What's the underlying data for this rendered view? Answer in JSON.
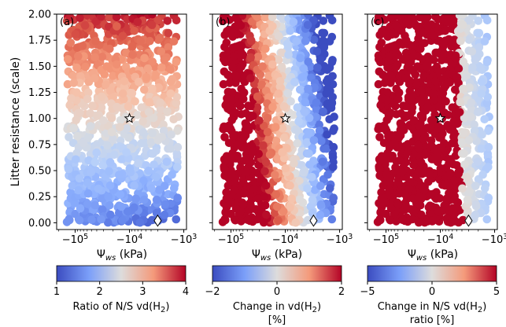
{
  "chart_data": [
    {
      "type": "scatter",
      "panel_label": "(a)",
      "xlabel": "Ψ_ws (kPa)",
      "ylabel": "Litter resistance (scale)",
      "x_scale": "symlog (negative)",
      "x_ticks": [
        "−10^5",
        "−10^4",
        "−10^3"
      ],
      "y_ticks": [
        "0.00",
        "0.25",
        "0.50",
        "0.75",
        "1.00",
        "1.25",
        "1.50",
        "1.75",
        "2.00"
      ],
      "ylim": [
        0,
        2
      ],
      "colorbar": {
        "label": "Ratio of N/S vd(H2)",
        "min": 1,
        "max": 4,
        "ticks": [
          "1",
          "2",
          "3",
          "4"
        ],
        "cmap": "coolwarm"
      },
      "markers": [
        {
          "symbol": "star",
          "x": -10000,
          "y": 1.0
        },
        {
          "symbol": "diamond",
          "x": -3000,
          "y": 0.02
        }
      ]
    },
    {
      "type": "scatter",
      "panel_label": "(b)",
      "xlabel": "Ψ_ws (kPa)",
      "x_scale": "symlog (negative)",
      "x_ticks": [
        "−10^5",
        "−10^4",
        "−10^3"
      ],
      "ylim": [
        0,
        2
      ],
      "colorbar": {
        "label": "Change in vd(H2) [%]",
        "min": -2,
        "max": 2,
        "ticks": [
          "−2",
          "0",
          "2"
        ],
        "cmap": "coolwarm"
      },
      "markers": [
        {
          "symbol": "star",
          "x": -10000,
          "y": 1.0
        },
        {
          "symbol": "diamond",
          "x": -3000,
          "y": 0.02
        }
      ]
    },
    {
      "type": "scatter",
      "panel_label": "(c)",
      "xlabel": "Ψ_ws (kPa)",
      "x_scale": "symlog (negative)",
      "x_ticks": [
        "−10^5",
        "−10^4",
        "−10^3"
      ],
      "ylim": [
        0,
        2
      ],
      "colorbar": {
        "label": "Change in N/S vd(H2) ratio [%]",
        "min": -5,
        "max": 5,
        "ticks": [
          "−5",
          "0",
          "5"
        ],
        "cmap": "coolwarm"
      },
      "markers": [
        {
          "symbol": "star",
          "x": -10000,
          "y": 1.0
        },
        {
          "symbol": "diamond",
          "x": -3000,
          "y": 0.02
        }
      ]
    }
  ],
  "labels": {
    "panel_a": "(a)",
    "panel_b": "(b)",
    "panel_c": "(c)",
    "ylabel": "Litter resistance (scale)",
    "xlabel_main": "Ψ",
    "xlabel_sub": "ws",
    "xlabel_unit": " (kPa)",
    "xtick_base": "−10",
    "xtick_exp_1": "5",
    "xtick_exp_2": "4",
    "xtick_exp_3": "3",
    "ytick_0": "0.00",
    "ytick_1": "0.25",
    "ytick_2": "0.50",
    "ytick_3": "0.75",
    "ytick_4": "1.00",
    "ytick_5": "1.25",
    "ytick_6": "1.50",
    "ytick_7": "1.75",
    "ytick_8": "2.00",
    "cb_a_ticks": [
      "1",
      "2",
      "3",
      "4"
    ],
    "cb_b_ticks": [
      "−2",
      "0",
      "2"
    ],
    "cb_c_ticks": [
      "−5",
      "0",
      "5"
    ],
    "cb_a_label_1": "Ratio of N/S vd(H",
    "cb_a_label_sub": "2",
    "cb_a_label_2": ")",
    "cb_b_label_1": "Change in vd(H",
    "cb_b_label_sub": "2",
    "cb_b_label_2": ")",
    "cb_b_label_line2": "[%]",
    "cb_c_label_1": "Change in N/S vd(H",
    "cb_c_label_sub": "2",
    "cb_c_label_2": ")",
    "cb_c_label_line2": "ratio [%]"
  },
  "colors": {
    "cmap_low": "#3b4cc0",
    "cmap_mid": "#dddcdc",
    "cmap_high": "#b40426"
  }
}
